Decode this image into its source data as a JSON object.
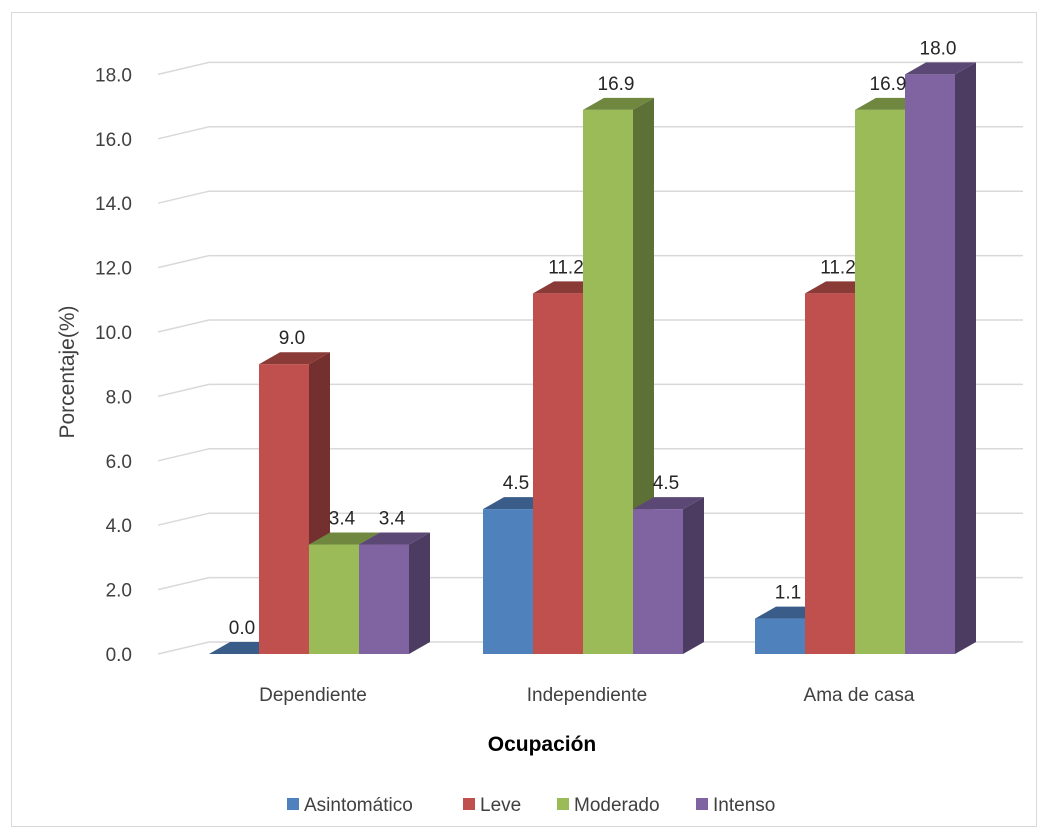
{
  "chart_data": {
    "type": "bar",
    "title": "",
    "xlabel": "Ocupación",
    "ylabel": "Porcentaje(%)",
    "ylim": [
      0,
      18
    ],
    "yticks": [
      "0.0",
      "2.0",
      "4.0",
      "6.0",
      "8.0",
      "10.0",
      "12.0",
      "14.0",
      "16.0",
      "18.0"
    ],
    "categories": [
      "Dependiente",
      "Independiente",
      "Ama de casa"
    ],
    "series": [
      {
        "name": "Asintomático",
        "color": "#4f81bd",
        "values": [
          0.0,
          4.5,
          1.1
        ],
        "labels": [
          "0.0",
          "4.5",
          "1.1"
        ]
      },
      {
        "name": "Leve",
        "color": "#c0504d",
        "values": [
          9.0,
          11.2,
          11.2
        ],
        "labels": [
          "9.0",
          "11.2",
          "11.2"
        ]
      },
      {
        "name": "Moderado",
        "color": "#9bbb59",
        "values": [
          3.4,
          16.9,
          16.9
        ],
        "labels": [
          "3.4",
          "16.9",
          "16.9"
        ]
      },
      {
        "name": "Intenso",
        "color": "#8064a2",
        "values": [
          3.4,
          4.5,
          18.0
        ],
        "labels": [
          "3.4",
          "4.5",
          "18.0"
        ]
      }
    ],
    "grid": true,
    "legend_position": "bottom",
    "style": "3d-clustered-column"
  }
}
